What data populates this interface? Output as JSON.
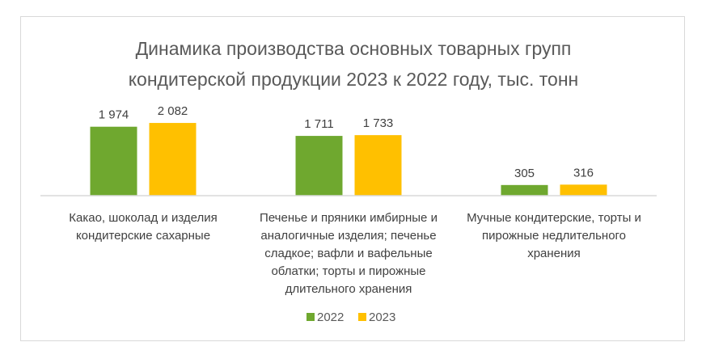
{
  "chart_data": {
    "type": "bar",
    "title": [
      "Динамика производства основных товарных групп",
      "кондитерской продукции 2023 к 2022 году, тыс. тонн"
    ],
    "categories": [
      [
        "Какао, шоколад и изделия",
        "кондитерские сахарные"
      ],
      [
        "Печенье и пряники имбирные и",
        "аналогичные изделия; печенье",
        "сладкое; вафли и вафельные",
        "облатки; торты и пирожные",
        "длительного хранения"
      ],
      [
        "Мучные кондитерские, торты и",
        "пирожные недлительного",
        "хранения"
      ]
    ],
    "series": [
      {
        "name": "2022",
        "color": "#6fa82f",
        "values": [
          1974,
          1711,
          305
        ],
        "labels": [
          "1 974",
          "1 711",
          "305"
        ]
      },
      {
        "name": "2023",
        "color": "#ffc000",
        "values": [
          2082,
          1733,
          316
        ],
        "labels": [
          "2 082",
          "1 733",
          "316"
        ]
      }
    ],
    "xlabel": "",
    "ylabel": "",
    "ylim": [
      0,
      2500
    ],
    "grid": false,
    "legend": "bottom"
  }
}
